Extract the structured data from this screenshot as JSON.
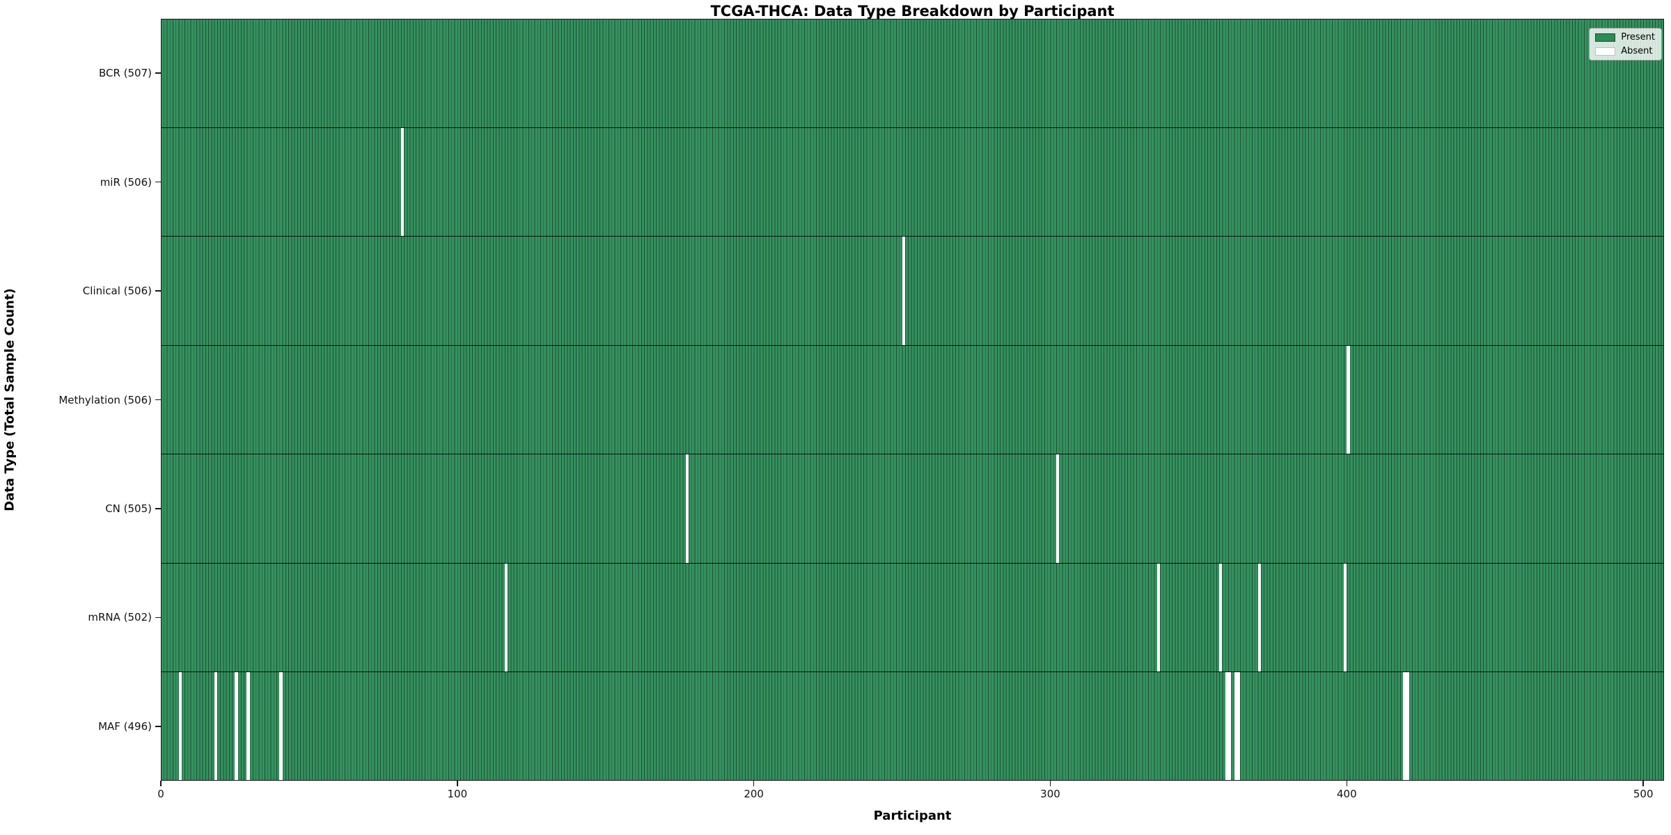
{
  "title": "TCGA-THCA: Data Type Breakdown by Participant",
  "x_axis_label": "Participant",
  "y_axis_label": "Data Type (Total Sample Count)",
  "colors": {
    "present_fill": "#35915f",
    "present_legend": "#2E8B57",
    "bar_edge": "#1e4f36",
    "absent_fill": "#ffffff",
    "axis": "#161616"
  },
  "legend": {
    "position": "upper right",
    "entries": [
      {
        "label": "Present",
        "color": "#2E8B57"
      },
      {
        "label": "Absent",
        "color": "#ffffff"
      }
    ]
  },
  "chart_data": {
    "type": "heatmap",
    "title": "TCGA-THCA: Data Type Breakdown by Participant",
    "xlabel": "Participant",
    "ylabel": "Data Type (Total Sample Count)",
    "xlim": [
      0,
      507
    ],
    "total_participants": 507,
    "x_ticks": [
      0,
      100,
      200,
      300,
      400,
      500
    ],
    "grid": false,
    "rows": [
      {
        "name": "bcr",
        "label": "BCR (507)",
        "data_type": "BCR",
        "present_count": 507,
        "absent_participants": []
      },
      {
        "name": "mir",
        "label": "miR (506)",
        "data_type": "miR",
        "present_count": 506,
        "absent_participants": [
          81
        ]
      },
      {
        "name": "clinical",
        "label": "Clinical (506)",
        "data_type": "Clinical",
        "present_count": 506,
        "absent_participants": [
          250
        ]
      },
      {
        "name": "methylation",
        "label": "Methylation (506)",
        "data_type": "Methylation",
        "present_count": 506,
        "absent_participants": [
          400
        ]
      },
      {
        "name": "cn",
        "label": "CN (505)",
        "data_type": "CN",
        "present_count": 505,
        "absent_participants": [
          177,
          302
        ]
      },
      {
        "name": "mrna",
        "label": "mRNA (502)",
        "data_type": "mRNA",
        "present_count": 502,
        "absent_participants": [
          116,
          336,
          357,
          370,
          399
        ]
      },
      {
        "name": "maf",
        "label": "MAF (496)",
        "data_type": "MAF",
        "present_count": 496,
        "absent_participants": [
          6,
          18,
          25,
          29,
          40,
          359,
          360,
          362,
          363,
          419,
          420
        ]
      }
    ]
  }
}
